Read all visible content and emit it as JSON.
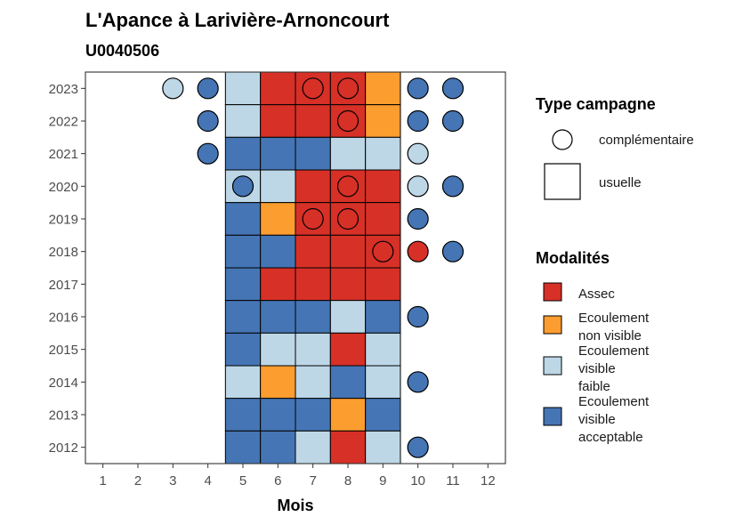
{
  "chart_data": {
    "type": "heatmap",
    "title": "L'Apance à Larivière-Arnoncourt",
    "subtitle": "U0040506",
    "xlabel": "Mois",
    "ylabel": "",
    "x_ticks": [
      "1",
      "2",
      "3",
      "4",
      "5",
      "6",
      "7",
      "8",
      "9",
      "10",
      "11",
      "12"
    ],
    "y_ticks": [
      "2012",
      "2013",
      "2014",
      "2015",
      "2016",
      "2017",
      "2018",
      "2019",
      "2020",
      "2021",
      "2022",
      "2023"
    ],
    "xlim": [
      0.5,
      12.5
    ],
    "ylim": [
      2011.5,
      2023.5
    ],
    "grid": false,
    "colors": {
      "Assec": "#d73027",
      "Ecoulement non visible": "#fc9d2f",
      "Ecoulement visible faible": "#bdd7e7",
      "Ecoulement visible acceptable": "#4575b4"
    },
    "legend_type": {
      "title": "Type campagne",
      "entries": [
        {
          "label": "complémentaire",
          "shape": "circle"
        },
        {
          "label": "usuelle",
          "shape": "square"
        }
      ]
    },
    "legend_modalites": {
      "title": "Modalités",
      "entries": [
        {
          "key": "Assec",
          "lines": [
            "Assec"
          ]
        },
        {
          "key": "Ecoulement non visible",
          "lines": [
            "Ecoulement",
            "non visible"
          ]
        },
        {
          "key": "Ecoulement visible faible",
          "lines": [
            "Ecoulement",
            "visible",
            "faible"
          ]
        },
        {
          "key": "Ecoulement visible acceptable",
          "lines": [
            "Ecoulement",
            "visible",
            "acceptable"
          ]
        }
      ]
    },
    "usuelle": [
      {
        "year": 2023,
        "values": [
          "Ecoulement visible faible",
          "Assec",
          "Assec",
          "Assec",
          "Ecoulement non visible"
        ]
      },
      {
        "year": 2022,
        "values": [
          "Ecoulement visible faible",
          "Assec",
          "Assec",
          "Assec",
          "Ecoulement non visible"
        ]
      },
      {
        "year": 2021,
        "values": [
          "Ecoulement visible acceptable",
          "Ecoulement visible acceptable",
          "Ecoulement visible acceptable",
          "Ecoulement visible faible",
          "Ecoulement visible faible"
        ]
      },
      {
        "year": 2020,
        "values": [
          "Ecoulement visible faible",
          "Ecoulement visible faible",
          "Assec",
          "Assec",
          "Assec"
        ]
      },
      {
        "year": 2019,
        "values": [
          "Ecoulement visible acceptable",
          "Ecoulement non visible",
          "Assec",
          "Assec",
          "Assec"
        ]
      },
      {
        "year": 2018,
        "values": [
          "Ecoulement visible acceptable",
          "Ecoulement visible acceptable",
          "Assec",
          "Assec",
          "Assec"
        ]
      },
      {
        "year": 2017,
        "values": [
          "Ecoulement visible acceptable",
          "Assec",
          "Assec",
          "Assec",
          "Assec"
        ]
      },
      {
        "year": 2016,
        "values": [
          "Ecoulement visible acceptable",
          "Ecoulement visible acceptable",
          "Ecoulement visible acceptable",
          "Ecoulement visible faible",
          "Ecoulement visible acceptable"
        ]
      },
      {
        "year": 2015,
        "values": [
          "Ecoulement visible acceptable",
          "Ecoulement visible faible",
          "Ecoulement visible faible",
          "Assec",
          "Ecoulement visible faible"
        ]
      },
      {
        "year": 2014,
        "values": [
          "Ecoulement visible faible",
          "Ecoulement non visible",
          "Ecoulement visible faible",
          "Ecoulement visible acceptable",
          "Ecoulement visible faible"
        ]
      },
      {
        "year": 2013,
        "values": [
          "Ecoulement visible acceptable",
          "Ecoulement visible acceptable",
          "Ecoulement visible acceptable",
          "Ecoulement non visible",
          "Ecoulement visible acceptable"
        ]
      },
      {
        "year": 2012,
        "values": [
          "Ecoulement visible acceptable",
          "Ecoulement visible acceptable",
          "Ecoulement visible faible",
          "Assec",
          "Ecoulement visible faible"
        ]
      }
    ],
    "usuelle_months": [
      5,
      6,
      7,
      8,
      9
    ],
    "complementaire": [
      {
        "year": 2023,
        "month": 3,
        "value": "Ecoulement visible faible"
      },
      {
        "year": 2023,
        "month": 4,
        "value": "Ecoulement visible acceptable"
      },
      {
        "year": 2023,
        "month": 7,
        "value": "Assec"
      },
      {
        "year": 2023,
        "month": 8,
        "value": "Assec"
      },
      {
        "year": 2023,
        "month": 10,
        "value": "Ecoulement visible acceptable"
      },
      {
        "year": 2023,
        "month": 11,
        "value": "Ecoulement visible acceptable"
      },
      {
        "year": 2022,
        "month": 4,
        "value": "Ecoulement visible acceptable"
      },
      {
        "year": 2022,
        "month": 8,
        "value": "Assec"
      },
      {
        "year": 2022,
        "month": 10,
        "value": "Ecoulement visible acceptable"
      },
      {
        "year": 2022,
        "month": 11,
        "value": "Ecoulement visible acceptable"
      },
      {
        "year": 2021,
        "month": 4,
        "value": "Ecoulement visible acceptable"
      },
      {
        "year": 2021,
        "month": 10,
        "value": "Ecoulement visible faible"
      },
      {
        "year": 2020,
        "month": 5,
        "value": "Ecoulement visible acceptable"
      },
      {
        "year": 2020,
        "month": 8,
        "value": "Assec"
      },
      {
        "year": 2020,
        "month": 10,
        "value": "Ecoulement visible faible"
      },
      {
        "year": 2020,
        "month": 11,
        "value": "Ecoulement visible acceptable"
      },
      {
        "year": 2019,
        "month": 7,
        "value": "Assec"
      },
      {
        "year": 2019,
        "month": 8,
        "value": "Assec"
      },
      {
        "year": 2019,
        "month": 10,
        "value": "Ecoulement visible acceptable"
      },
      {
        "year": 2018,
        "month": 9,
        "value": "Assec"
      },
      {
        "year": 2018,
        "month": 10,
        "value": "Assec"
      },
      {
        "year": 2018,
        "month": 11,
        "value": "Ecoulement visible acceptable"
      },
      {
        "year": 2016,
        "month": 10,
        "value": "Ecoulement visible acceptable"
      },
      {
        "year": 2014,
        "month": 10,
        "value": "Ecoulement visible acceptable"
      },
      {
        "year": 2012,
        "month": 10,
        "value": "Ecoulement visible acceptable"
      }
    ]
  }
}
